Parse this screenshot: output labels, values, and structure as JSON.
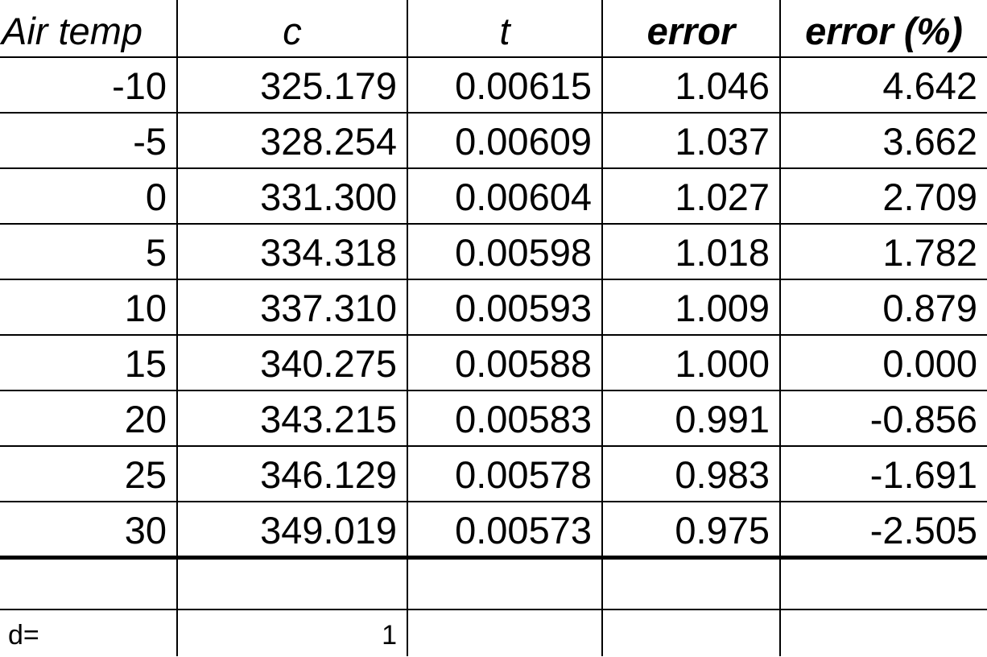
{
  "headers": [
    "Air temp",
    "c",
    "t",
    "error",
    "error (%)"
  ],
  "rows": [
    [
      "-10",
      "325.179",
      "0.00615",
      "1.046",
      "4.642"
    ],
    [
      "-5",
      "328.254",
      "0.00609",
      "1.037",
      "3.662"
    ],
    [
      "0",
      "331.300",
      "0.00604",
      "1.027",
      "2.709"
    ],
    [
      "5",
      "334.318",
      "0.00598",
      "1.018",
      "1.782"
    ],
    [
      "10",
      "337.310",
      "0.00593",
      "1.009",
      "0.879"
    ],
    [
      "15",
      "340.275",
      "0.00588",
      "1.000",
      "0.000"
    ],
    [
      "20",
      "343.215",
      "0.00583",
      "0.991",
      "-0.856"
    ],
    [
      "25",
      "346.129",
      "0.00578",
      "0.983",
      "-1.691"
    ],
    [
      "30",
      "349.019",
      "0.00573",
      "0.975",
      "-2.505"
    ]
  ],
  "footer": {
    "label": "d=",
    "value": "1"
  }
}
